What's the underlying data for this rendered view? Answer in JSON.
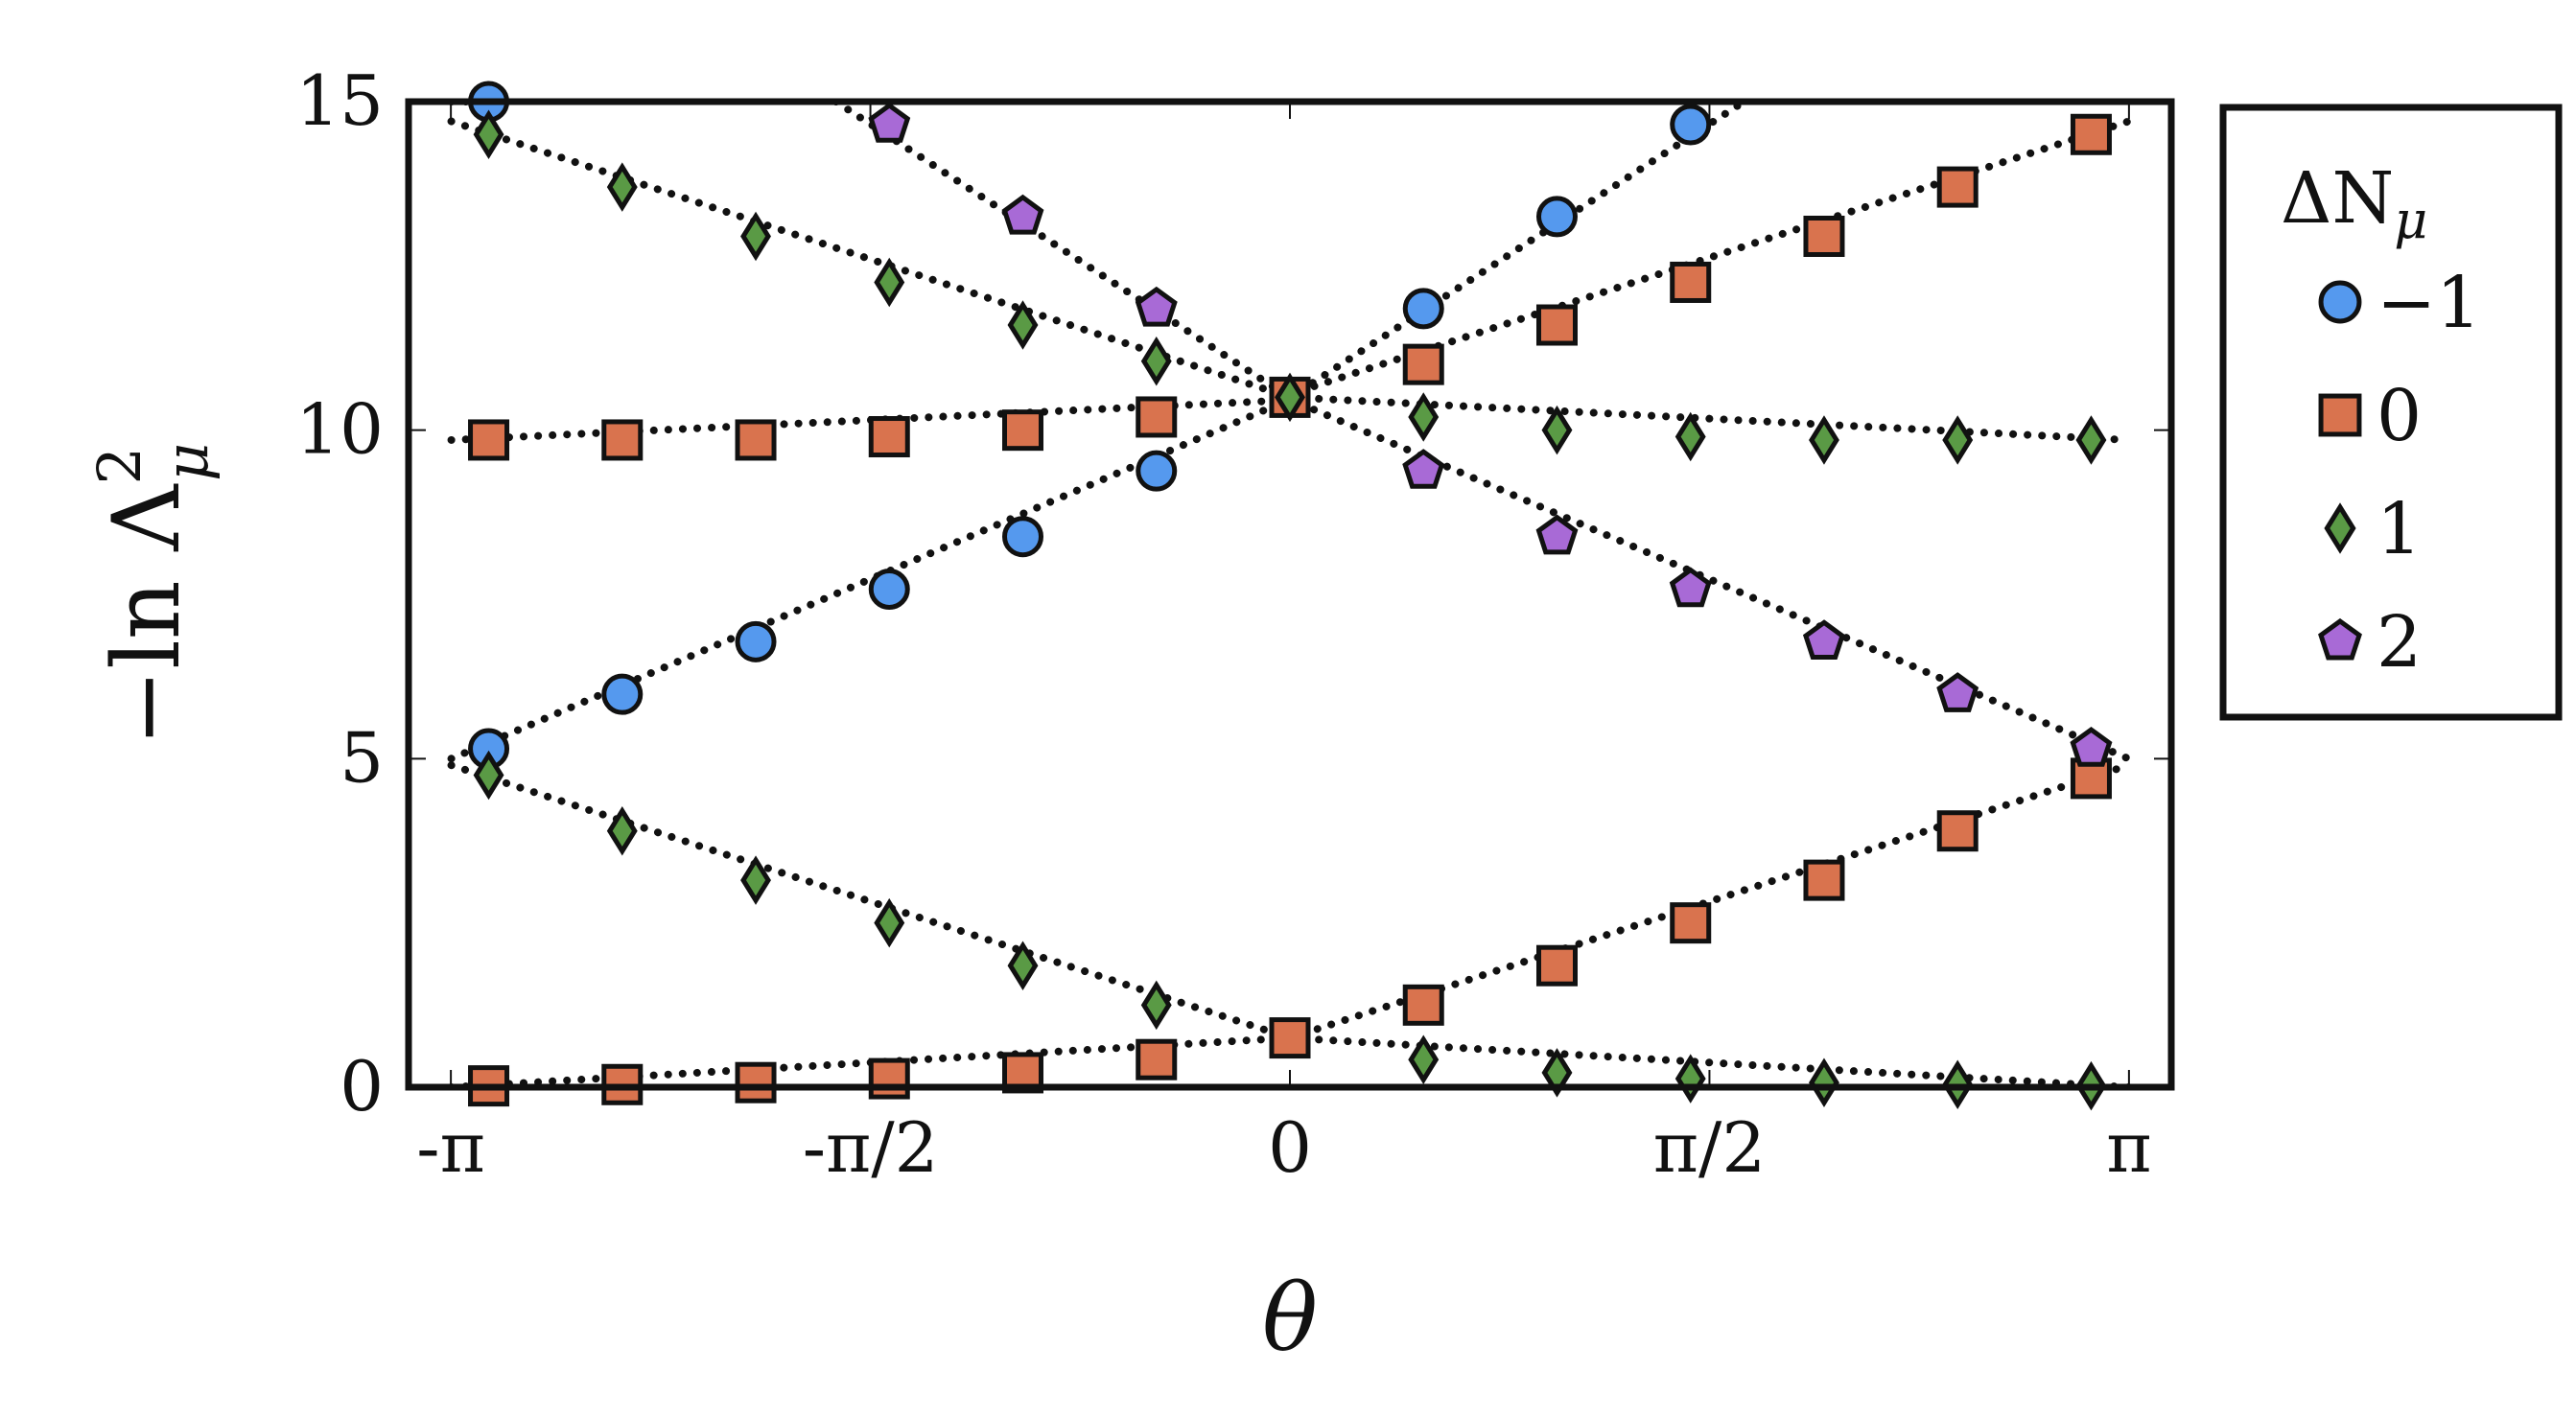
{
  "chart_data": {
    "type": "scatter",
    "title": "",
    "xlabel": "θ",
    "ylabel": "−ln Λ",
    "ylabel_sup": "2",
    "ylabel_sub": "μ",
    "xlim": [
      -3.3,
      3.3
    ],
    "ylim": [
      0,
      15
    ],
    "xticks": [
      {
        "value": -3.14159,
        "label": "-π"
      },
      {
        "value": -1.5708,
        "label": "-π/2"
      },
      {
        "value": 0,
        "label": "0"
      },
      {
        "value": 1.5708,
        "label": "π/2"
      },
      {
        "value": 3.14159,
        "label": "π"
      }
    ],
    "yticks": [
      {
        "value": 0,
        "label": "0"
      },
      {
        "value": 5,
        "label": "5"
      },
      {
        "value": 10,
        "label": "10"
      },
      {
        "value": 15,
        "label": "15"
      }
    ],
    "legend": {
      "title_main": "ΔN",
      "title_sub": "μ",
      "placement": "right-outside-top",
      "entries": [
        {
          "label": "−1",
          "marker": "circle",
          "color": "#5599ee"
        },
        {
          "label": "0",
          "marker": "square",
          "color": "#d9734e"
        },
        {
          "label": "1",
          "marker": "diamond",
          "color": "#5a9a45"
        },
        {
          "label": "2",
          "marker": "pentagon",
          "color": "#a86ad6"
        }
      ]
    },
    "x": [
      -3.0,
      -2.5,
      -2.0,
      -1.5,
      -1.0,
      -0.5,
      0,
      0.5,
      1.0,
      1.5,
      2.0,
      2.5,
      3.0
    ],
    "series": [
      {
        "marker": "circle",
        "color": "#5599ee",
        "line_x": [
          -3.14,
          -0.04
        ],
        "line_y": [
          5.0,
          10.4
        ],
        "x": [
          -3.0,
          -2.5,
          -2.0,
          -1.5,
          -1.0,
          -0.5
        ],
        "y": [
          5.15,
          5.98,
          6.78,
          7.58,
          8.38,
          9.38
        ]
      },
      {
        "marker": "circle",
        "color": "#5599ee",
        "line_x": [
          0.04,
          1.7
        ],
        "line_y": [
          10.6,
          15.0
        ],
        "x": [
          0.5,
          1.0,
          1.5
        ],
        "y": [
          11.85,
          13.25,
          14.65
        ]
      },
      {
        "marker": "circle",
        "color": "#5599ee",
        "line_x": [
          -3.14,
          -3.0
        ],
        "line_y": [
          15.0,
          15.0
        ],
        "x": [
          -3.0
        ],
        "y": [
          15.0
        ]
      },
      {
        "marker": "square",
        "color": "#d9734e",
        "line_x": [
          -3.14,
          -0.04
        ],
        "line_y": [
          9.85,
          10.45
        ],
        "x": [
          -3.0,
          -2.5,
          -2.0,
          -1.5,
          -1.0,
          -0.5,
          0
        ],
        "y": [
          9.85,
          9.85,
          9.85,
          9.9,
          10.0,
          10.2,
          10.5
        ]
      },
      {
        "marker": "square",
        "color": "#d9734e",
        "line_x": [
          0.04,
          3.14
        ],
        "line_y": [
          10.6,
          14.7
        ],
        "x": [
          0.5,
          1.0,
          1.5,
          2.0,
          2.5,
          3.0
        ],
        "y": [
          11.0,
          11.6,
          12.25,
          12.95,
          13.7,
          14.5
        ]
      },
      {
        "marker": "square",
        "color": "#d9734e",
        "line_x": [
          -3.14,
          0
        ],
        "line_y": [
          0.0,
          0.75
        ],
        "x": [
          -3.0,
          -2.5,
          -2.0,
          -1.5,
          -1.0,
          -0.5,
          0
        ],
        "y": [
          0.02,
          0.04,
          0.07,
          0.13,
          0.22,
          0.42,
          0.75
        ]
      },
      {
        "marker": "square",
        "color": "#d9734e",
        "line_x": [
          0,
          3.14
        ],
        "line_y": [
          0.75,
          4.9
        ],
        "x": [
          0.5,
          1.0,
          1.5,
          2.0,
          2.5,
          3.0
        ],
        "y": [
          1.25,
          1.85,
          2.5,
          3.15,
          3.9,
          4.7
        ]
      },
      {
        "marker": "diamond",
        "color": "#5a9a45",
        "line_x": [
          -3.14,
          0
        ],
        "line_y": [
          14.7,
          10.5
        ],
        "x": [
          -3.0,
          -2.5,
          -2.0,
          -1.5,
          -1.0,
          -0.5,
          0
        ],
        "y": [
          14.5,
          13.7,
          12.95,
          12.25,
          11.6,
          11.05,
          10.5
        ]
      },
      {
        "marker": "diamond",
        "color": "#5a9a45",
        "line_x": [
          0,
          3.14
        ],
        "line_y": [
          10.5,
          9.85
        ],
        "x": [
          0.5,
          1.0,
          1.5,
          2.0,
          2.5,
          3.0
        ],
        "y": [
          10.2,
          10.0,
          9.9,
          9.85,
          9.85,
          9.85
        ]
      },
      {
        "marker": "diamond",
        "color": "#5a9a45",
        "line_x": [
          -3.14,
          0
        ],
        "line_y": [
          4.9,
          0.75
        ],
        "x": [
          -3.0,
          -2.5,
          -2.0,
          -1.5,
          -1.0,
          -0.5
        ],
        "y": [
          4.75,
          3.9,
          3.15,
          2.5,
          1.85,
          1.25
        ]
      },
      {
        "marker": "diamond",
        "color": "#5a9a45",
        "line_x": [
          0,
          3.14
        ],
        "line_y": [
          0.75,
          0.0
        ],
        "x": [
          0.5,
          1.0,
          1.5,
          2.0,
          2.5,
          3.0
        ],
        "y": [
          0.42,
          0.22,
          0.13,
          0.07,
          0.04,
          0.02
        ]
      },
      {
        "marker": "pentagon",
        "color": "#a86ad6",
        "line_x": [
          -1.7,
          -0.04
        ],
        "line_y": [
          15.0,
          10.6
        ],
        "x": [
          -1.5,
          -1.0,
          -0.5
        ],
        "y": [
          14.65,
          13.25,
          11.85
        ]
      },
      {
        "marker": "pentagon",
        "color": "#a86ad6",
        "line_x": [
          0.04,
          3.14
        ],
        "line_y": [
          10.4,
          5.0
        ],
        "x": [
          0.5,
          1.0,
          1.5,
          2.0,
          2.5,
          3.0
        ],
        "y": [
          9.38,
          8.38,
          7.58,
          6.78,
          5.98,
          5.15
        ]
      }
    ]
  }
}
